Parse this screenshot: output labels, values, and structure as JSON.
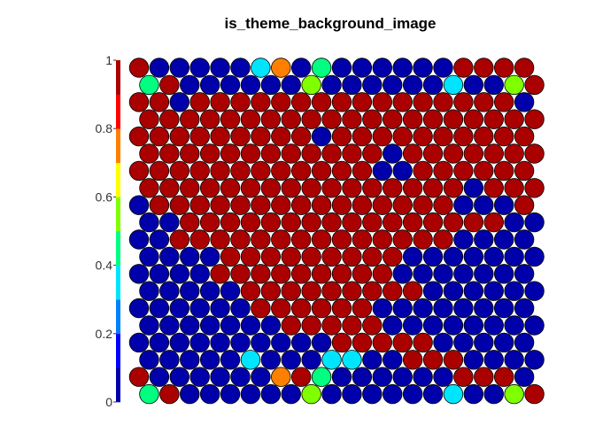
{
  "chart_data": {
    "type": "heatmap",
    "subtype": "hexagonal-som-property-map",
    "title": "is_theme_background_image",
    "xlabel": "",
    "ylabel": "",
    "grid_rows": 20,
    "grid_cols": 20,
    "row_order": "top-to-bottom",
    "hex_offset": "odd rows shifted right",
    "color_scale": {
      "range": [
        0,
        1
      ],
      "ticks": [
        0,
        0.2,
        0.4,
        0.6,
        0.8,
        1
      ],
      "tick_labels": [
        "0",
        "0.2",
        "0.4",
        "0.6",
        "0.8",
        "1"
      ],
      "colors": [
        "#0000AA",
        "#0000FF",
        "#0080FF",
        "#00E5FF",
        "#00FF80",
        "#80FF00",
        "#FFFF00",
        "#FF8000",
        "#FF0000",
        "#AA0000"
      ]
    },
    "legend_placement": "left",
    "values": [
      [
        1,
        0,
        0,
        0,
        0,
        0,
        0.3,
        0.7,
        0,
        0.45,
        0,
        0,
        0,
        0,
        0,
        0,
        1,
        1,
        1,
        1
      ],
      [
        0.45,
        1,
        0,
        0,
        0,
        0,
        0,
        0,
        0.55,
        0,
        0,
        0,
        0,
        0,
        0,
        0.3,
        0,
        0,
        0.55,
        1
      ],
      [
        1,
        1,
        0,
        1,
        1,
        1,
        1,
        1,
        1,
        1,
        1,
        1,
        1,
        1,
        1,
        1,
        1,
        1,
        1,
        0
      ],
      [
        1,
        1,
        1,
        1,
        1,
        1,
        1,
        1,
        1,
        1,
        1,
        1,
        1,
        1,
        1,
        1,
        1,
        1,
        1,
        1
      ],
      [
        1,
        1,
        1,
        1,
        1,
        1,
        1,
        1,
        1,
        0,
        1,
        1,
        1,
        1,
        1,
        1,
        1,
        1,
        1,
        1
      ],
      [
        1,
        1,
        1,
        1,
        1,
        1,
        1,
        1,
        1,
        1,
        1,
        1,
        0,
        1,
        1,
        1,
        1,
        1,
        1,
        1
      ],
      [
        1,
        1,
        1,
        1,
        1,
        1,
        1,
        1,
        1,
        1,
        1,
        1,
        0,
        0,
        1,
        1,
        1,
        1,
        1,
        1
      ],
      [
        1,
        1,
        1,
        1,
        1,
        1,
        1,
        1,
        1,
        1,
        1,
        1,
        1,
        1,
        1,
        1,
        0,
        1,
        1,
        1
      ],
      [
        0,
        1,
        1,
        1,
        1,
        1,
        1,
        1,
        1,
        1,
        1,
        1,
        1,
        1,
        1,
        1,
        0,
        0,
        0,
        1
      ],
      [
        0,
        0,
        1,
        1,
        1,
        1,
        1,
        1,
        1,
        1,
        1,
        1,
        1,
        1,
        1,
        1,
        1,
        1,
        0,
        0
      ],
      [
        0,
        0,
        1,
        1,
        1,
        1,
        1,
        1,
        1,
        1,
        1,
        1,
        1,
        1,
        1,
        1,
        0,
        0,
        0,
        0
      ],
      [
        0,
        0,
        0,
        0,
        1,
        1,
        1,
        1,
        1,
        1,
        1,
        1,
        1,
        0,
        0,
        0,
        0,
        0,
        0,
        0
      ],
      [
        0,
        0,
        0,
        0,
        1,
        1,
        1,
        1,
        1,
        1,
        1,
        1,
        1,
        0,
        0,
        0,
        0,
        0,
        0,
        0
      ],
      [
        0,
        0,
        0,
        0,
        0,
        1,
        1,
        1,
        1,
        1,
        1,
        1,
        1,
        1,
        0,
        0,
        0,
        0,
        0,
        0
      ],
      [
        0,
        0,
        0,
        0,
        0,
        0,
        1,
        1,
        1,
        1,
        1,
        1,
        0,
        0,
        0,
        0,
        0,
        0,
        0,
        0
      ],
      [
        0,
        0,
        0,
        0,
        0,
        0,
        0,
        1,
        1,
        1,
        1,
        1,
        0,
        0,
        0,
        0,
        0,
        0,
        0,
        0
      ],
      [
        0,
        0,
        0,
        0,
        0,
        0,
        0,
        0,
        0,
        0,
        1,
        1,
        1,
        1,
        1,
        0,
        0,
        0,
        0,
        0
      ],
      [
        0,
        0,
        0,
        0,
        0,
        0.3,
        0,
        0,
        0,
        0.3,
        0.3,
        0,
        0,
        1,
        1,
        1,
        0,
        0,
        0,
        0
      ],
      [
        1,
        0,
        0,
        0,
        0,
        0,
        0,
        0.7,
        1,
        0.45,
        0,
        0,
        0,
        0,
        0,
        0,
        1,
        1,
        1,
        0
      ],
      [
        0.45,
        1,
        0,
        0,
        0,
        0,
        0,
        0,
        0.55,
        0,
        0,
        0,
        0,
        0,
        0,
        0.3,
        0,
        0,
        0.55,
        1
      ]
    ]
  }
}
